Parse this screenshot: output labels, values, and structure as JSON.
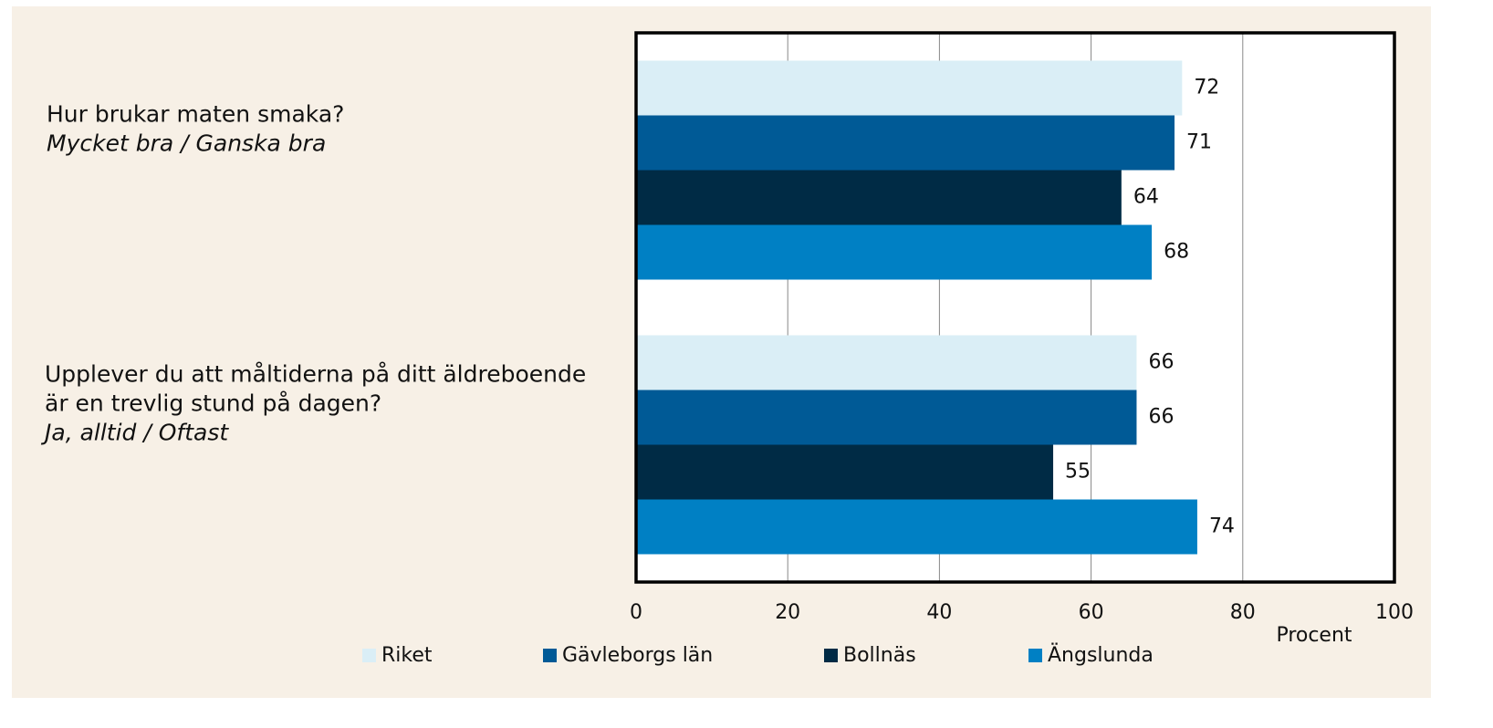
{
  "chart_data": {
    "type": "hbar",
    "categories": [
      [
        "Hur brukar maten smaka?"
      ],
      [
        "Upplever du att måltiderna på ditt äldreboende",
        "är en trevlig stund på dagen?"
      ]
    ],
    "category_notes": [
      "Mycket bra / Ganska bra",
      "Ja, alltid / Oftast"
    ],
    "series": [
      {
        "name": "Riket",
        "color": "#daeef6",
        "values": [
          72,
          66
        ]
      },
      {
        "name": "Gävleborgs län",
        "color": "#005a96",
        "values": [
          71,
          66
        ]
      },
      {
        "name": "Bollnäs",
        "color": "#002b45",
        "values": [
          64,
          55
        ]
      },
      {
        "name": "Ängslunda",
        "color": "#0080c4",
        "values": [
          68,
          74
        ]
      }
    ],
    "xlim": [
      0,
      100
    ],
    "xticks": [
      0,
      20,
      40,
      60,
      80,
      100
    ],
    "xlabel": "Procent",
    "grid": true,
    "legend": "bottom"
  }
}
